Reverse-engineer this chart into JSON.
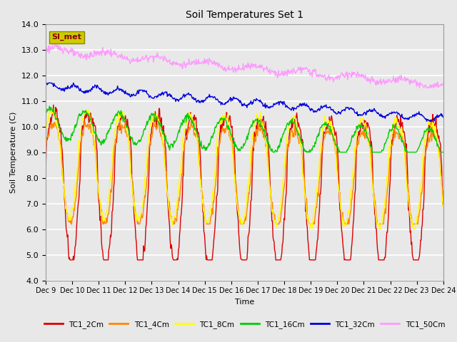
{
  "title": "Soil Temperatures Set 1",
  "xlabel": "Time",
  "ylabel": "Soil Temperature (C)",
  "ylim": [
    4.0,
    14.0
  ],
  "yticks": [
    4.0,
    5.0,
    6.0,
    7.0,
    8.0,
    9.0,
    10.0,
    11.0,
    12.0,
    13.0,
    14.0
  ],
  "background_color": "#e8e8e8",
  "plot_bg_color": "#e8e8e8",
  "grid_color": "#ffffff",
  "series": {
    "TC1_2Cm": {
      "color": "#dd0000",
      "linewidth": 1.0
    },
    "TC1_4Cm": {
      "color": "#ff8800",
      "linewidth": 1.0
    },
    "TC1_8Cm": {
      "color": "#ffff00",
      "linewidth": 1.0
    },
    "TC1_16Cm": {
      "color": "#00cc00",
      "linewidth": 1.0
    },
    "TC1_32Cm": {
      "color": "#0000dd",
      "linewidth": 1.0
    },
    "TC1_50Cm": {
      "color": "#ff99ff",
      "linewidth": 1.0
    }
  },
  "annotation_text": "SI_met",
  "annotation_color": "#8b0000",
  "annotation_bg": "#cccc00",
  "n_points": 720,
  "x_start": 0,
  "x_end": 15,
  "xtick_positions": [
    0,
    1,
    2,
    3,
    4,
    5,
    6,
    7,
    8,
    9,
    10,
    11,
    12,
    13,
    14,
    15
  ],
  "xtick_labels": [
    "Dec 9",
    "Dec 10",
    "Dec 11",
    "Dec 12",
    "Dec 13",
    "Dec 14",
    "Dec 15",
    "Dec 16",
    "Dec 17",
    "Dec 18",
    "Dec 19",
    "Dec 20",
    "Dec 21",
    "Dec 22",
    "Dec 23",
    "Dec 24"
  ],
  "legend_labels": [
    "TC1_2Cm",
    "TC1_4Cm",
    "TC1_8Cm",
    "TC1_16Cm",
    "TC1_32Cm",
    "TC1_50Cm"
  ]
}
